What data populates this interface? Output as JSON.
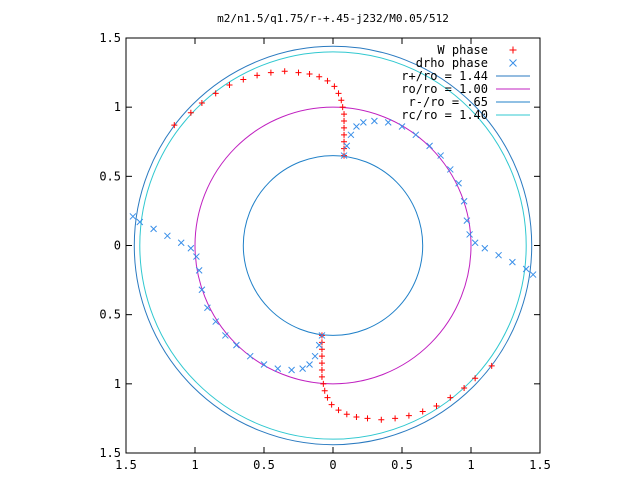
{
  "chart_data": {
    "type": "scatter",
    "title": "m2/n1.5/q1.75/r-+.45-j232/M0.05/512",
    "xlabel": "",
    "ylabel": "",
    "xlim": [
      -1.5,
      1.5
    ],
    "ylim": [
      -1.5,
      1.5
    ],
    "x_tick_labels": [
      "1.5",
      "1",
      "0.5",
      "0",
      "0.5",
      "1",
      "1.5"
    ],
    "x_tick_values": [
      -1.5,
      -1.0,
      -0.5,
      0,
      0.5,
      1.0,
      1.5
    ],
    "y_tick_labels": [
      "1.5",
      "1",
      "0.5",
      "0",
      "0.5",
      "1",
      "1.5"
    ],
    "y_tick_values": [
      1.5,
      1.0,
      0.5,
      0,
      -0.5,
      -1.0,
      -1.5
    ],
    "grid": false,
    "legend_position": "top-right",
    "legend": [
      {
        "label": "W phase",
        "kind": "marker",
        "marker": "plus",
        "color": "#ff0000"
      },
      {
        "label": "drho phase",
        "kind": "marker",
        "marker": "x",
        "color": "#3a8fe8"
      },
      {
        "label": "r+/ro = 1.44",
        "kind": "line",
        "color": "#2a7ac0"
      },
      {
        "label": "ro/ro = 1.00",
        "kind": "line",
        "color": "#c020c0"
      },
      {
        "label": "r-/ro = .65",
        "kind": "line",
        "color": "#2080c8"
      },
      {
        "label": "rc/ro = 1.40",
        "kind": "line",
        "color": "#30c8d0"
      }
    ],
    "circles": [
      {
        "name": "r+/ro",
        "r": 1.44,
        "color": "#2a7ac0"
      },
      {
        "name": "ro/ro",
        "r": 1.0,
        "color": "#c020c0"
      },
      {
        "name": "r-/ro",
        "r": 0.65,
        "color": "#2080c8"
      },
      {
        "name": "rc/ro",
        "r": 1.4,
        "color": "#30c8d0"
      }
    ],
    "series": [
      {
        "name": "W phase",
        "marker": "plus",
        "color": "#ff0000",
        "points": [
          [
            0.08,
            0.65
          ],
          [
            0.08,
            0.7
          ],
          [
            0.08,
            0.75
          ],
          [
            0.08,
            0.8
          ],
          [
            0.08,
            0.85
          ],
          [
            0.08,
            0.9
          ],
          [
            0.08,
            0.95
          ],
          [
            0.07,
            1.0
          ],
          [
            0.06,
            1.05
          ],
          [
            0.04,
            1.1
          ],
          [
            0.01,
            1.15
          ],
          [
            -0.04,
            1.19
          ],
          [
            -0.1,
            1.22
          ],
          [
            -0.17,
            1.24
          ],
          [
            -0.25,
            1.25
          ],
          [
            -0.35,
            1.26
          ],
          [
            -0.45,
            1.25
          ],
          [
            -0.55,
            1.23
          ],
          [
            -0.65,
            1.2
          ],
          [
            -0.75,
            1.16
          ],
          [
            -0.85,
            1.1
          ],
          [
            -0.95,
            1.03
          ],
          [
            -1.03,
            0.96
          ],
          [
            -1.15,
            0.87
          ],
          [
            -0.08,
            -0.65
          ],
          [
            -0.08,
            -0.7
          ],
          [
            -0.08,
            -0.75
          ],
          [
            -0.08,
            -0.8
          ],
          [
            -0.08,
            -0.85
          ],
          [
            -0.08,
            -0.9
          ],
          [
            -0.08,
            -0.95
          ],
          [
            -0.07,
            -1.0
          ],
          [
            -0.06,
            -1.05
          ],
          [
            -0.04,
            -1.1
          ],
          [
            -0.01,
            -1.15
          ],
          [
            0.04,
            -1.19
          ],
          [
            0.1,
            -1.22
          ],
          [
            0.17,
            -1.24
          ],
          [
            0.25,
            -1.25
          ],
          [
            0.35,
            -1.26
          ],
          [
            0.45,
            -1.25
          ],
          [
            0.55,
            -1.23
          ],
          [
            0.65,
            -1.2
          ],
          [
            0.75,
            -1.16
          ],
          [
            0.85,
            -1.1
          ],
          [
            0.95,
            -1.03
          ],
          [
            1.03,
            -0.96
          ],
          [
            1.15,
            -0.87
          ]
        ]
      },
      {
        "name": "drho phase",
        "marker": "x",
        "color": "#3a8fe8",
        "points": [
          [
            0.08,
            0.65
          ],
          [
            0.1,
            0.72
          ],
          [
            0.13,
            0.8
          ],
          [
            0.17,
            0.86
          ],
          [
            0.22,
            0.89
          ],
          [
            0.3,
            0.9
          ],
          [
            0.4,
            0.89
          ],
          [
            0.5,
            0.86
          ],
          [
            0.6,
            0.8
          ],
          [
            0.7,
            0.72
          ],
          [
            0.78,
            0.65
          ],
          [
            0.85,
            0.55
          ],
          [
            0.91,
            0.45
          ],
          [
            0.95,
            0.32
          ],
          [
            0.97,
            0.18
          ],
          [
            0.99,
            0.08
          ],
          [
            1.03,
            0.02
          ],
          [
            1.1,
            -0.02
          ],
          [
            1.2,
            -0.07
          ],
          [
            1.3,
            -0.12
          ],
          [
            1.4,
            -0.17
          ],
          [
            1.45,
            -0.21
          ],
          [
            -0.08,
            -0.65
          ],
          [
            -0.1,
            -0.72
          ],
          [
            -0.13,
            -0.8
          ],
          [
            -0.17,
            -0.86
          ],
          [
            -0.22,
            -0.89
          ],
          [
            -0.3,
            -0.9
          ],
          [
            -0.4,
            -0.89
          ],
          [
            -0.5,
            -0.86
          ],
          [
            -0.6,
            -0.8
          ],
          [
            -0.7,
            -0.72
          ],
          [
            -0.78,
            -0.65
          ],
          [
            -0.85,
            -0.55
          ],
          [
            -0.91,
            -0.45
          ],
          [
            -0.95,
            -0.32
          ],
          [
            -0.97,
            -0.18
          ],
          [
            -0.99,
            -0.08
          ],
          [
            -1.03,
            -0.02
          ],
          [
            -1.1,
            0.02
          ],
          [
            -1.2,
            0.07
          ],
          [
            -1.3,
            0.12
          ],
          [
            -1.4,
            0.17
          ],
          [
            -1.45,
            0.21
          ]
        ]
      }
    ]
  }
}
